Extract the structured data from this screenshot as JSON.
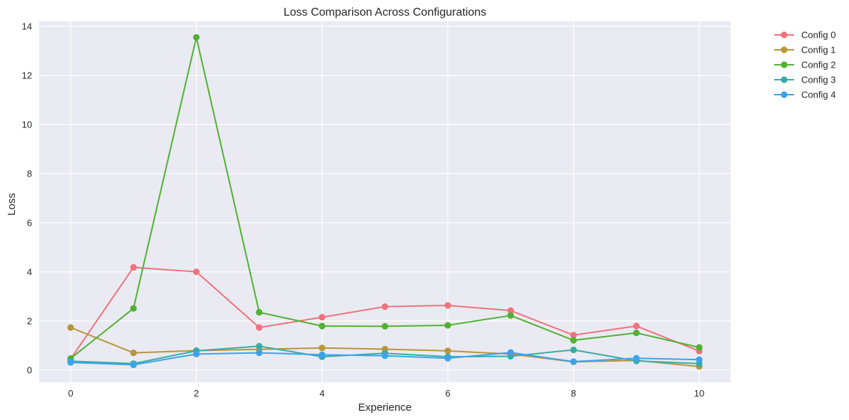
{
  "chart_data": {
    "type": "line",
    "title": "Loss Comparison Across Configurations",
    "xlabel": "Experience",
    "ylabel": "Loss",
    "xlim": [
      -0.5,
      10.5
    ],
    "ylim": [
      -0.5,
      14.2
    ],
    "xticks": [
      0,
      2,
      4,
      6,
      8,
      10
    ],
    "yticks": [
      0,
      2,
      4,
      6,
      8,
      10,
      12,
      14
    ],
    "grid": true,
    "legend_position": "outside-top-right",
    "x": [
      0,
      1,
      2,
      3,
      4,
      5,
      6,
      7,
      8,
      9,
      10
    ],
    "series": [
      {
        "name": "Config 0",
        "color": "#f0727d",
        "marker": "circle",
        "values": [
          0.45,
          4.18,
          4.0,
          1.73,
          2.15,
          2.58,
          2.63,
          2.42,
          1.42,
          1.79,
          0.77
        ]
      },
      {
        "name": "Config 1",
        "color": "#b8953a",
        "marker": "circle",
        "values": [
          1.73,
          0.7,
          0.79,
          0.84,
          0.9,
          0.85,
          0.78,
          0.65,
          0.33,
          0.39,
          0.14
        ]
      },
      {
        "name": "Config 2",
        "color": "#50b131",
        "marker": "circle",
        "values": [
          0.47,
          2.51,
          13.55,
          2.35,
          1.79,
          1.78,
          1.82,
          2.22,
          1.21,
          1.51,
          0.92
        ]
      },
      {
        "name": "Config 3",
        "color": "#36ada4",
        "marker": "circle",
        "values": [
          0.36,
          0.26,
          0.78,
          0.97,
          0.54,
          0.68,
          0.54,
          0.56,
          0.82,
          0.37,
          0.26
        ]
      },
      {
        "name": "Config 4",
        "color": "#3ba3ec",
        "marker": "circle",
        "values": [
          0.31,
          0.21,
          0.65,
          0.7,
          0.62,
          0.58,
          0.48,
          0.71,
          0.34,
          0.48,
          0.42
        ]
      }
    ]
  }
}
